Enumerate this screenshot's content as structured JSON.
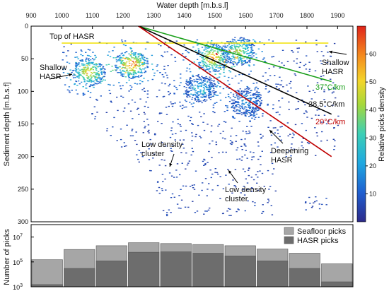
{
  "chart_data": [
    {
      "type": "heatmap",
      "xlabel": "Water depth [m.b.s.l]",
      "ylabel": "Sediment depth [m.b.s.f]",
      "colorbar_label": "Relative picks density",
      "xlim": [
        900,
        1950
      ],
      "ylim": [
        0,
        300
      ],
      "xticks": [
        900,
        1000,
        1100,
        1200,
        1300,
        1400,
        1500,
        1600,
        1700,
        1800,
        1900
      ],
      "yticks": [
        0,
        50,
        100,
        150,
        200,
        250,
        300
      ],
      "colorbar_range": [
        0,
        70
      ],
      "colorbar_ticks": [
        10,
        20,
        30,
        40,
        50,
        60
      ],
      "hotspots": [
        {
          "x": 1085,
          "y": 70,
          "density": 55
        },
        {
          "x": 1225,
          "y": 58,
          "density": 65
        },
        {
          "x": 1490,
          "y": 48,
          "density": 62
        },
        {
          "x": 1575,
          "y": 38,
          "density": 45
        },
        {
          "x": 1450,
          "y": 95,
          "density": 25
        },
        {
          "x": 1600,
          "y": 115,
          "density": 20
        }
      ],
      "lines": [
        {
          "name": "Top of HASR",
          "color": "#f0e000",
          "points": [
            [
              1000,
              26
            ],
            [
              1870,
              26
            ]
          ]
        },
        {
          "name": "37°C/km",
          "color": "#1aa01a",
          "points": [
            [
              1250,
              0
            ],
            [
              1880,
              85
            ]
          ]
        },
        {
          "name": "28.5°C/km",
          "color": "#000000",
          "points": [
            [
              1250,
              0
            ],
            [
              1880,
              135
            ]
          ]
        },
        {
          "name": "20°C/km",
          "color": "#c00000",
          "points": [
            [
              1250,
              0
            ],
            [
              1880,
              200
            ]
          ]
        }
      ],
      "annotations": {
        "top_hasr": "Top of HASR",
        "shallow_left": [
          "Shallow",
          "HASR"
        ],
        "shallow_right": [
          "Shallow",
          "HASR"
        ],
        "grad_37": "37°C/km",
        "grad_285": "28.5°C/km",
        "grad_20": "20°C/km",
        "low_density_1": [
          "Low density",
          "cluster"
        ],
        "low_density_2": [
          "Low density",
          "cluster"
        ],
        "deepening": [
          "Deepening",
          "HASR"
        ]
      }
    },
    {
      "type": "bar",
      "ylabel": "Number of picks",
      "yscale": "log",
      "ylim_exp": [
        3,
        8
      ],
      "ytick_exps": [
        3,
        5,
        7
      ],
      "categories": [
        "900-1000",
        "1000-1100",
        "1100-1200",
        "1200-1300",
        "1300-1400",
        "1400-1500",
        "1500-1600",
        "1600-1700",
        "1700-1800",
        "1800-1900"
      ],
      "series": [
        {
          "name": "Seafloor picks",
          "color": "#a6a6a6",
          "values": [
            150000.0,
            1000000.0,
            2000000.0,
            3500000.0,
            3000000.0,
            2500000.0,
            2000000.0,
            1100000.0,
            500000.0,
            70000.0
          ]
        },
        {
          "name": "HASR picks",
          "color": "#6d6d6d",
          "values": [
            1500.0,
            30000.0,
            120000.0,
            600000.0,
            650000.0,
            500000.0,
            300000.0,
            120000.0,
            30000.0,
            2500.0
          ]
        }
      ]
    }
  ]
}
